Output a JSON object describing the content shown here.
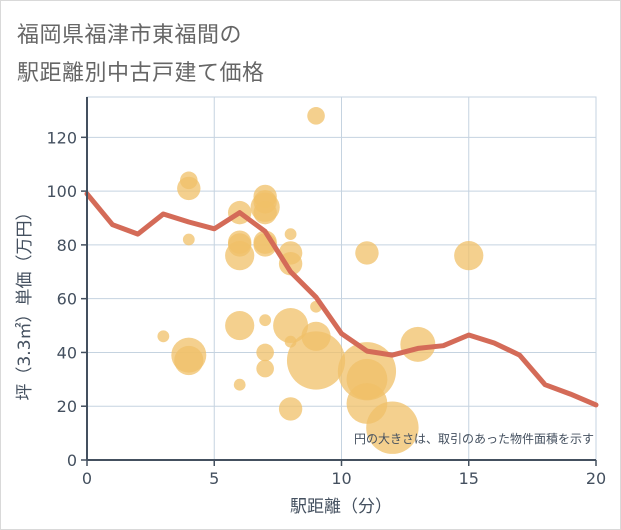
{
  "chart_data": {
    "type": "scatter",
    "title_line1": "福岡県福津市東福間の",
    "title_line2": "駅距離別中古戸建て価格",
    "xlabel": "駅距離（分）",
    "ylabel": "坪（3.3㎡）単価（万円）",
    "xlim": [
      0,
      20
    ],
    "ylim": [
      0,
      135
    ],
    "x_ticks": [
      0,
      5,
      10,
      15,
      20
    ],
    "y_ticks": [
      0,
      20,
      40,
      60,
      80,
      100,
      120
    ],
    "note": "円の大きさは、取引のあった物件面積を示す",
    "colors": {
      "bubble": "#f0c068",
      "line": "#d46b58",
      "grid": "#c5d3e0",
      "axis": "#44505f"
    },
    "scatter_points": [
      {
        "x": 3,
        "y": 46,
        "size": 1
      },
      {
        "x": 4,
        "y": 104,
        "size": 2
      },
      {
        "x": 4,
        "y": 101,
        "size": 3
      },
      {
        "x": 4,
        "y": 82,
        "size": 1
      },
      {
        "x": 4,
        "y": 39,
        "size": 5
      },
      {
        "x": 4,
        "y": 37,
        "size": 4
      },
      {
        "x": 6,
        "y": 92,
        "size": 3
      },
      {
        "x": 6,
        "y": 81,
        "size": 3
      },
      {
        "x": 6,
        "y": 80,
        "size": 3
      },
      {
        "x": 6,
        "y": 76,
        "size": 4
      },
      {
        "x": 6,
        "y": 50,
        "size": 4
      },
      {
        "x": 6,
        "y": 28,
        "size": 1
      },
      {
        "x": 7,
        "y": 98,
        "size": 3
      },
      {
        "x": 7,
        "y": 96,
        "size": 3
      },
      {
        "x": 7,
        "y": 94,
        "size": 4
      },
      {
        "x": 7,
        "y": 92,
        "size": 3
      },
      {
        "x": 7,
        "y": 81,
        "size": 3
      },
      {
        "x": 7,
        "y": 80,
        "size": 3
      },
      {
        "x": 7,
        "y": 52,
        "size": 1
      },
      {
        "x": 7,
        "y": 40,
        "size": 2
      },
      {
        "x": 7,
        "y": 34,
        "size": 2
      },
      {
        "x": 8,
        "y": 84,
        "size": 1
      },
      {
        "x": 8,
        "y": 77,
        "size": 3
      },
      {
        "x": 8,
        "y": 73,
        "size": 3
      },
      {
        "x": 8,
        "y": 50,
        "size": 5
      },
      {
        "x": 8,
        "y": 44,
        "size": 1
      },
      {
        "x": 8,
        "y": 19,
        "size": 3
      },
      {
        "x": 9,
        "y": 128,
        "size": 2
      },
      {
        "x": 9,
        "y": 57,
        "size": 1
      },
      {
        "x": 9,
        "y": 46,
        "size": 4
      },
      {
        "x": 9,
        "y": 37,
        "size": 9
      },
      {
        "x": 11,
        "y": 77,
        "size": 3
      },
      {
        "x": 11,
        "y": 33,
        "size": 9
      },
      {
        "x": 11,
        "y": 30,
        "size": 6
      },
      {
        "x": 11,
        "y": 21,
        "size": 6
      },
      {
        "x": 12,
        "y": 12,
        "size": 8
      },
      {
        "x": 13,
        "y": 43,
        "size": 5
      },
      {
        "x": 15,
        "y": 76,
        "size": 4
      }
    ],
    "avg_line": {
      "x": [
        0,
        1,
        2,
        3,
        4,
        5,
        6,
        7,
        8,
        9,
        10,
        11,
        12,
        13,
        14,
        15,
        16,
        17,
        18,
        19,
        20
      ],
      "y": [
        99,
        87.5,
        84,
        91.5,
        88.5,
        86,
        92,
        85,
        70,
        60.5,
        47,
        40.5,
        39,
        41.5,
        42.5,
        46.5,
        43.5,
        39,
        28,
        24.5,
        20.5
      ]
    }
  }
}
